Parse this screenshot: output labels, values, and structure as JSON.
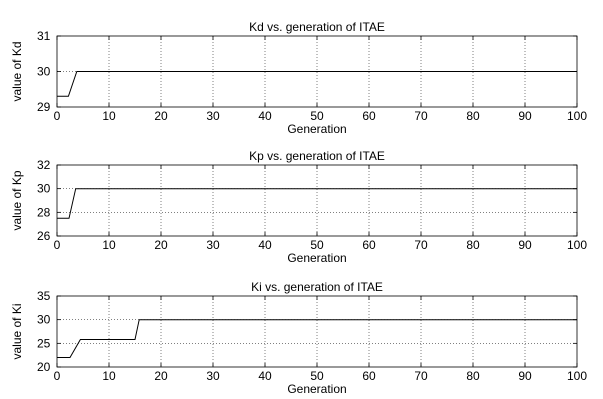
{
  "chart_data": [
    {
      "type": "line",
      "title": "Kd vs. generation of ITAE",
      "xlabel": "Generation",
      "ylabel": "value of Kd",
      "xlim": [
        0,
        100
      ],
      "ylim": [
        29,
        31
      ],
      "xticks": [
        "0",
        "10",
        "20",
        "30",
        "40",
        "50",
        "60",
        "70",
        "80",
        "90",
        "100"
      ],
      "yticks": [
        "29",
        "30",
        "31"
      ],
      "grid": true,
      "x": [
        0,
        2.2,
        3.8,
        100
      ],
      "values": [
        29.3,
        29.3,
        30,
        30
      ]
    },
    {
      "type": "line",
      "title": "Kp vs. generation of ITAE",
      "xlabel": "Generation",
      "ylabel": "value of Kp",
      "xlim": [
        0,
        100
      ],
      "ylim": [
        26,
        32
      ],
      "xticks": [
        "0",
        "10",
        "20",
        "30",
        "40",
        "50",
        "60",
        "70",
        "80",
        "90",
        "100"
      ],
      "yticks": [
        "26",
        "28",
        "30",
        "32"
      ],
      "grid": true,
      "x": [
        0,
        2.3,
        3.6,
        100
      ],
      "values": [
        27.5,
        27.5,
        30,
        30
      ]
    },
    {
      "type": "line",
      "title": "Ki vs. generation of ITAE",
      "xlabel": "Generation",
      "ylabel": "value of Ki",
      "xlim": [
        0,
        100
      ],
      "ylim": [
        20,
        35
      ],
      "xticks": [
        "0",
        "10",
        "20",
        "30",
        "40",
        "50",
        "60",
        "70",
        "80",
        "90",
        "100"
      ],
      "yticks": [
        "20",
        "25",
        "30",
        "35"
      ],
      "grid": true,
      "x": [
        0,
        2.5,
        4.5,
        15,
        15.8,
        100
      ],
      "values": [
        22,
        22,
        25.8,
        25.8,
        30,
        30
      ]
    }
  ]
}
